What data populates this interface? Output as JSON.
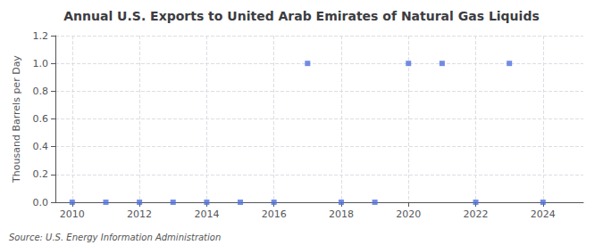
{
  "chart_data": {
    "type": "scatter",
    "title": "Annual U.S. Exports to United Arab Emirates of Natural Gas Liquids",
    "ylabel": "Thousand Barrels per Day",
    "annotations": [
      "Source: U.S. Energy Information Administration"
    ],
    "x": [
      2010,
      2011,
      2012,
      2013,
      2014,
      2015,
      2016,
      2017,
      2018,
      2019,
      2020,
      2021,
      2022,
      2023,
      2024
    ],
    "values": [
      0.0,
      0.0,
      0.0,
      0.0,
      0.0,
      0.0,
      0.0,
      1.0,
      0.0,
      0.0,
      1.0,
      1.0,
      0.0,
      1.0,
      0.0
    ],
    "xlim": [
      2009.5,
      2025.2
    ],
    "xticks": [
      2010,
      2012,
      2014,
      2016,
      2018,
      2020,
      2022,
      2024
    ],
    "ylim": [
      0.0,
      1.2
    ],
    "yticks": [
      {
        "value": 0.0,
        "label": "0.0"
      },
      0.2,
      0.4,
      0.6,
      0.8,
      {
        "value": 1.0,
        "label": "1.0"
      },
      1.2
    ],
    "grid": true,
    "marker": "square"
  }
}
